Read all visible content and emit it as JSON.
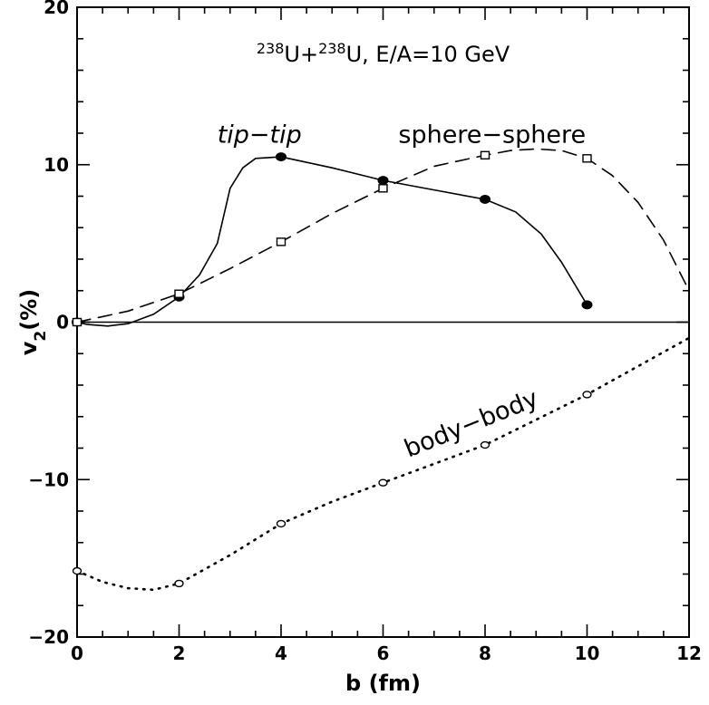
{
  "chart_data": {
    "type": "line",
    "title": "²³⁸U+²³⁸U, E/A=10 GeV",
    "title_parts": {
      "mass1": "238",
      "nucleus1": "U+",
      "mass2": "238",
      "rest": "U, E/A=10 GeV"
    },
    "xlabel": "b (fm)",
    "ylabel": {
      "main": "v",
      "sub": "2",
      "unit": "(%)"
    },
    "xlim": [
      0,
      12
    ],
    "ylim": [
      -20,
      20
    ],
    "xticks": [
      0,
      2,
      4,
      6,
      8,
      10,
      12
    ],
    "yticks": [
      -20,
      -10,
      0,
      10,
      20
    ],
    "grid": false,
    "legend": "none",
    "reference_line_y": 0,
    "series": [
      {
        "name": "tip−tip",
        "line": "solid",
        "marker": "filled-circle",
        "label_at": {
          "x": 2.75,
          "y": 11.4
        },
        "points": [
          [
            0,
            0
          ],
          [
            2,
            1.6
          ],
          [
            4,
            10.5
          ],
          [
            6,
            9.0
          ],
          [
            8,
            7.8
          ],
          [
            10,
            1.1
          ]
        ],
        "curve": [
          [
            0,
            0
          ],
          [
            0.2,
            -0.15
          ],
          [
            0.6,
            -0.25
          ],
          [
            1.0,
            -0.1
          ],
          [
            1.5,
            0.5
          ],
          [
            2,
            1.6
          ],
          [
            2.4,
            3.0
          ],
          [
            2.75,
            5.0
          ],
          [
            3.0,
            8.5
          ],
          [
            3.25,
            9.8
          ],
          [
            3.5,
            10.4
          ],
          [
            4,
            10.5
          ],
          [
            5,
            9.8
          ],
          [
            6,
            9.0
          ],
          [
            7,
            8.4
          ],
          [
            8,
            7.8
          ],
          [
            8.6,
            7.0
          ],
          [
            9.1,
            5.6
          ],
          [
            9.5,
            3.8
          ],
          [
            10,
            1.1
          ]
        ]
      },
      {
        "name": "sphere−sphere",
        "line": "dashed",
        "marker": "open-square",
        "label_at": {
          "x": 6.3,
          "y": 11.4
        },
        "points": [
          [
            0,
            0
          ],
          [
            2,
            1.8
          ],
          [
            4,
            5.1
          ],
          [
            6,
            8.5
          ],
          [
            8,
            10.6
          ],
          [
            10,
            10.4
          ]
        ],
        "curve": [
          [
            0,
            0
          ],
          [
            1,
            0.7
          ],
          [
            2,
            1.8
          ],
          [
            3,
            3.4
          ],
          [
            4,
            5.1
          ],
          [
            5,
            6.9
          ],
          [
            6,
            8.5
          ],
          [
            7,
            9.9
          ],
          [
            8,
            10.6
          ],
          [
            8.5,
            10.9
          ],
          [
            9,
            11.0
          ],
          [
            9.5,
            10.9
          ],
          [
            10,
            10.4
          ],
          [
            10.5,
            9.3
          ],
          [
            11,
            7.6
          ],
          [
            11.5,
            5.2
          ],
          [
            12,
            2.0
          ]
        ]
      },
      {
        "name": "body−body",
        "line": "dotted",
        "marker": "open-circle",
        "label_at": {
          "x": 6.5,
          "y": -8.6
        },
        "label_angle_deg": -22,
        "points": [
          [
            0,
            -15.8
          ],
          [
            2,
            -16.6
          ],
          [
            4,
            -12.8
          ],
          [
            6,
            -10.2
          ],
          [
            8,
            -7.8
          ],
          [
            10,
            -4.6
          ]
        ],
        "curve": [
          [
            0,
            -15.8
          ],
          [
            0.5,
            -16.5
          ],
          [
            1,
            -16.9
          ],
          [
            1.5,
            -17.0
          ],
          [
            2,
            -16.6
          ],
          [
            3,
            -14.8
          ],
          [
            4,
            -12.8
          ],
          [
            5,
            -11.4
          ],
          [
            6,
            -10.2
          ],
          [
            7,
            -9.0
          ],
          [
            8,
            -7.8
          ],
          [
            9,
            -6.2
          ],
          [
            10,
            -4.6
          ],
          [
            11,
            -2.8
          ],
          [
            12,
            -1.0
          ]
        ]
      }
    ]
  }
}
